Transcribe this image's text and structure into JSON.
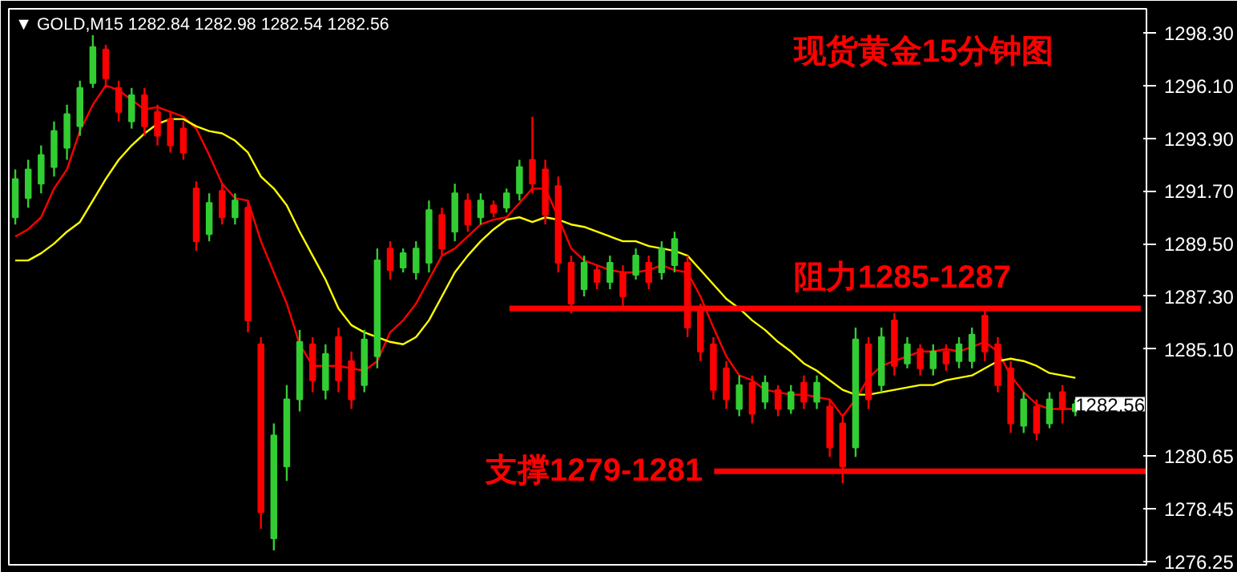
{
  "chart_data": {
    "type": "candlestick",
    "title": "现货黄金15分钟图",
    "annotations": [
      "▼ GOLD,M15  1282.84 1282.98 1282.54 1282.56",
      "1282.56"
    ],
    "categories": [
      null,
      null,
      null,
      null,
      null,
      null,
      null,
      null,
      null,
      null,
      null,
      null,
      null,
      null,
      null,
      null,
      null,
      null,
      null,
      null,
      null,
      null,
      null,
      null,
      null,
      null,
      null,
      null,
      null,
      null,
      null,
      null,
      null,
      null,
      null,
      null,
      null,
      null,
      null,
      null,
      null,
      null,
      null,
      null,
      null,
      null,
      null,
      null,
      null,
      null,
      null,
      null,
      null,
      null,
      null,
      null,
      null,
      null,
      null,
      null,
      null,
      null,
      null,
      null,
      null,
      null,
      null,
      null,
      null,
      null,
      null,
      null,
      null,
      null,
      null,
      null,
      null,
      null,
      null,
      null,
      null,
      null,
      null
    ],
    "ohlc": [
      [
        1290.6,
        1292.6,
        1290.3,
        1292.2
      ],
      [
        1291.4,
        1293.0,
        1291.0,
        1292.6
      ],
      [
        1292.0,
        1293.6,
        1291.6,
        1293.2
      ],
      [
        1292.7,
        1294.6,
        1292.3,
        1294.2
      ],
      [
        1293.5,
        1295.3,
        1293.0,
        1294.9
      ],
      [
        1294.4,
        1296.3,
        1294.0,
        1296.0
      ],
      [
        1296.2,
        1298.2,
        1296.0,
        1297.7
      ],
      [
        1297.6,
        1297.8,
        1296.0,
        1296.4
      ],
      [
        1296.0,
        1296.3,
        1294.6,
        1295.0
      ],
      [
        1294.6,
        1296.0,
        1294.3,
        1295.7
      ],
      [
        1295.7,
        1296.0,
        1294.0,
        1294.4
      ],
      [
        1295.0,
        1295.3,
        1293.6,
        1294.0
      ],
      [
        1294.7,
        1295.0,
        1293.3,
        1293.6
      ],
      [
        1294.3,
        1294.6,
        1293.0,
        1293.3
      ],
      [
        1291.8,
        1292.1,
        1289.2,
        1289.6
      ],
      [
        1289.9,
        1291.6,
        1289.6,
        1291.2
      ],
      [
        1291.7,
        1292.0,
        1290.3,
        1290.6
      ],
      [
        1290.6,
        1291.6,
        1290.3,
        1291.3
      ],
      [
        1291.0,
        1291.3,
        1285.8,
        1286.3
      ],
      [
        1285.3,
        1285.6,
        1277.6,
        1278.3
      ],
      [
        1277.2,
        1282.0,
        1276.7,
        1281.5
      ],
      [
        1280.2,
        1283.6,
        1279.6,
        1283.0
      ],
      [
        1283.0,
        1285.9,
        1282.5,
        1285.4
      ],
      [
        1285.3,
        1285.6,
        1283.3,
        1283.8
      ],
      [
        1283.4,
        1285.3,
        1283.0,
        1284.9
      ],
      [
        1285.6,
        1286.0,
        1283.3,
        1283.8
      ],
      [
        1284.6,
        1285.0,
        1282.6,
        1283.0
      ],
      [
        1283.6,
        1285.9,
        1283.3,
        1285.5
      ],
      [
        1284.8,
        1289.3,
        1284.3,
        1288.8
      ],
      [
        1289.3,
        1289.6,
        1288.0,
        1288.4
      ],
      [
        1288.5,
        1289.3,
        1288.3,
        1289.1
      ],
      [
        1288.3,
        1289.6,
        1288.0,
        1289.3
      ],
      [
        1288.7,
        1291.3,
        1288.3,
        1290.9
      ],
      [
        1290.7,
        1291.0,
        1289.0,
        1289.3
      ],
      [
        1290.0,
        1292.0,
        1289.6,
        1291.6
      ],
      [
        1291.3,
        1291.6,
        1290.0,
        1290.3
      ],
      [
        1290.6,
        1291.6,
        1290.3,
        1291.3
      ],
      [
        1291.1,
        1291.3,
        1290.6,
        1290.8
      ],
      [
        1291.0,
        1291.8,
        1290.8,
        1291.6
      ],
      [
        1291.6,
        1293.0,
        1291.3,
        1292.7
      ],
      [
        1293.0,
        1294.8,
        1291.6,
        1292.0
      ],
      [
        1292.6,
        1293.0,
        1290.3,
        1290.7
      ],
      [
        1291.9,
        1292.3,
        1288.3,
        1288.7
      ],
      [
        1288.7,
        1289.0,
        1286.6,
        1287.0
      ],
      [
        1287.6,
        1289.0,
        1287.3,
        1288.7
      ],
      [
        1288.4,
        1288.6,
        1287.6,
        1287.9
      ],
      [
        1287.9,
        1289.0,
        1287.6,
        1288.7
      ],
      [
        1288.3,
        1288.6,
        1286.9,
        1287.3
      ],
      [
        1288.2,
        1289.3,
        1288.0,
        1289.0
      ],
      [
        1288.7,
        1289.0,
        1287.6,
        1287.9
      ],
      [
        1288.3,
        1289.6,
        1288.0,
        1289.3
      ],
      [
        1288.6,
        1290.0,
        1288.3,
        1289.7
      ],
      [
        1288.7,
        1289.0,
        1285.6,
        1286.0
      ],
      [
        1286.7,
        1287.0,
        1284.6,
        1285.0
      ],
      [
        1285.3,
        1285.6,
        1283.0,
        1283.4
      ],
      [
        1284.3,
        1284.6,
        1282.6,
        1283.0
      ],
      [
        1282.6,
        1284.0,
        1282.3,
        1283.6
      ],
      [
        1283.7,
        1284.0,
        1282.0,
        1282.4
      ],
      [
        1282.9,
        1284.0,
        1282.6,
        1283.7
      ],
      [
        1283.4,
        1283.6,
        1282.3,
        1282.6
      ],
      [
        1282.6,
        1283.6,
        1282.4,
        1283.3
      ],
      [
        1283.7,
        1284.0,
        1282.6,
        1282.9
      ],
      [
        1282.9,
        1284.0,
        1282.6,
        1283.7
      ],
      [
        1282.7,
        1283.0,
        1280.6,
        1281.0
      ],
      [
        1282.0,
        1282.3,
        1279.5,
        1280.2
      ],
      [
        1281.0,
        1286.0,
        1280.6,
        1285.5
      ],
      [
        1285.3,
        1285.6,
        1282.6,
        1283.0
      ],
      [
        1283.6,
        1286.0,
        1283.3,
        1285.6
      ],
      [
        1286.3,
        1286.6,
        1284.0,
        1284.4
      ],
      [
        1284.5,
        1285.6,
        1284.3,
        1285.3
      ],
      [
        1285.1,
        1285.3,
        1284.0,
        1284.3
      ],
      [
        1284.3,
        1285.3,
        1284.0,
        1285.0
      ],
      [
        1285.0,
        1285.3,
        1284.2,
        1284.5
      ],
      [
        1284.6,
        1285.6,
        1284.3,
        1285.3
      ],
      [
        1284.6,
        1286.0,
        1284.3,
        1285.7
      ],
      [
        1286.5,
        1286.8,
        1284.6,
        1285.0
      ],
      [
        1285.3,
        1285.6,
        1283.3,
        1283.6
      ],
      [
        1284.3,
        1284.6,
        1281.6,
        1282.0
      ],
      [
        1281.9,
        1283.3,
        1281.6,
        1283.0
      ],
      [
        1282.7,
        1283.0,
        1281.3,
        1281.6
      ],
      [
        1282.0,
        1283.3,
        1281.8,
        1283.0
      ],
      [
        1283.3,
        1283.6,
        1282.0,
        1282.6
      ],
      [
        1282.5,
        1283.0,
        1282.3,
        1282.8
      ]
    ],
    "colors": [
      "#32cd32",
      "#32cd32",
      "#32cd32",
      "#32cd32",
      "#32cd32",
      "#32cd32",
      "#32cd32",
      "#ff0000",
      "#ff0000",
      "#32cd32",
      "#ff0000",
      "#ff0000",
      "#ff0000",
      "#ff0000",
      "#ff0000",
      "#32cd32",
      "#ff0000",
      "#32cd32",
      "#ff0000",
      "#ff0000",
      "#32cd32",
      "#32cd32",
      "#32cd32",
      "#ff0000",
      "#32cd32",
      "#ff0000",
      "#ff0000",
      "#32cd32",
      "#32cd32",
      "#ff0000",
      "#32cd32",
      "#32cd32",
      "#32cd32",
      "#ff0000",
      "#32cd32",
      "#ff0000",
      "#32cd32",
      "#ff0000",
      "#32cd32",
      "#32cd32",
      "#ff0000",
      "#ff0000",
      "#ff0000",
      "#ff0000",
      "#32cd32",
      "#ff0000",
      "#32cd32",
      "#ff0000",
      "#32cd32",
      "#ff0000",
      "#32cd32",
      "#32cd32",
      "#ff0000",
      "#ff0000",
      "#ff0000",
      "#ff0000",
      "#32cd32",
      "#ff0000",
      "#32cd32",
      "#ff0000",
      "#32cd32",
      "#ff0000",
      "#32cd32",
      "#ff0000",
      "#ff0000",
      "#32cd32",
      "#ff0000",
      "#32cd32",
      "#ff0000",
      "#32cd32",
      "#ff0000",
      "#32cd32",
      "#ff0000",
      "#32cd32",
      "#32cd32",
      "#ff0000",
      "#ff0000",
      "#ff0000",
      "#32cd32",
      "#ff0000",
      "#32cd32",
      "#ff0000",
      "#32cd32"
    ],
    "series": [
      {
        "type": "line",
        "color": "#ff0000",
        "values": [
          1289.8,
          1290.1,
          1290.6,
          1291.8,
          1292.6,
          1294.2,
          1295.3,
          1296.1,
          1295.9,
          1295.5,
          1295.1,
          1295.2,
          1295.0,
          1294.8,
          1294.3,
          1293.2,
          1292.0,
          1291.4,
          1291.3,
          1289.6,
          1288.3,
          1287.0,
          1285.3,
          1284.4,
          1284.4,
          1284.4,
          1284.3,
          1284.2,
          1284.6,
          1285.8,
          1286.3,
          1287.0,
          1288.0,
          1289.0,
          1289.3,
          1289.8,
          1290.3,
          1290.5,
          1290.6,
          1291.2,
          1291.8,
          1291.8,
          1290.6,
          1289.3,
          1288.8,
          1288.6,
          1288.4,
          1288.3,
          1288.3,
          1288.4,
          1288.6,
          1288.4,
          1288.3,
          1287.3,
          1286.0,
          1284.8,
          1284.0,
          1283.8,
          1283.4,
          1283.3,
          1283.2,
          1283.2,
          1283.1,
          1283.0,
          1282.3,
          1283.0,
          1283.9,
          1284.4,
          1284.6,
          1284.8,
          1285.0,
          1285.0,
          1285.1,
          1285.0,
          1285.2,
          1285.4,
          1285.0,
          1284.0,
          1283.3,
          1282.8,
          1282.6,
          1282.6,
          1282.6
        ]
      },
      {
        "type": "line",
        "color": "#ffff00",
        "values": [
          1288.8,
          1288.8,
          1289.1,
          1289.5,
          1290.0,
          1290.4,
          1291.3,
          1292.2,
          1293.0,
          1293.6,
          1294.1,
          1294.5,
          1294.7,
          1294.7,
          1294.4,
          1294.2,
          1294.1,
          1293.8,
          1293.3,
          1292.3,
          1291.8,
          1291.1,
          1290.0,
          1289.0,
          1288.0,
          1286.8,
          1286.1,
          1285.8,
          1285.6,
          1285.4,
          1285.3,
          1285.6,
          1286.3,
          1287.3,
          1288.3,
          1289.0,
          1289.6,
          1290.1,
          1290.5,
          1290.6,
          1290.4,
          1290.6,
          1290.5,
          1290.3,
          1290.2,
          1290.0,
          1289.8,
          1289.6,
          1289.6,
          1289.4,
          1289.3,
          1289.2,
          1289.0,
          1288.4,
          1287.8,
          1287.2,
          1286.8,
          1286.3,
          1285.9,
          1285.4,
          1285.0,
          1284.5,
          1284.2,
          1283.8,
          1283.4,
          1283.2,
          1283.2,
          1283.3,
          1283.4,
          1283.5,
          1283.6,
          1283.6,
          1283.8,
          1283.9,
          1284.0,
          1284.3,
          1284.6,
          1284.7,
          1284.6,
          1284.4,
          1284.1,
          1284.0,
          1283.9
        ]
      }
    ],
    "ylim": [
      1276.1,
      1299.3
    ],
    "yticks": [
      {
        "value": 1298.3,
        "label": "1298.30"
      },
      {
        "value": 1296.1,
        "label": "1296.10"
      },
      {
        "value": 1293.9,
        "label": "1293.90"
      },
      {
        "value": 1291.7,
        "label": "1291.70"
      },
      {
        "value": 1289.5,
        "label": "1289.50"
      },
      {
        "value": 1287.3,
        "label": "1287.30"
      },
      {
        "value": 1285.1,
        "label": "1285.10"
      },
      {
        "value": 1280.65,
        "label": "1280.65"
      },
      {
        "value": 1278.45,
        "label": "1278.45"
      },
      {
        "value": 1276.25,
        "label": "1276.25"
      }
    ],
    "ref_lines": [
      {
        "axis": "y",
        "value": 1286.8,
        "label": "阻力1285-1287",
        "color": "#ff0000"
      },
      {
        "axis": "y",
        "value": 1280.0,
        "label": "支撑1279-1281",
        "color": "#ff0000"
      }
    ],
    "grid": false,
    "tick_labels": "y"
  }
}
